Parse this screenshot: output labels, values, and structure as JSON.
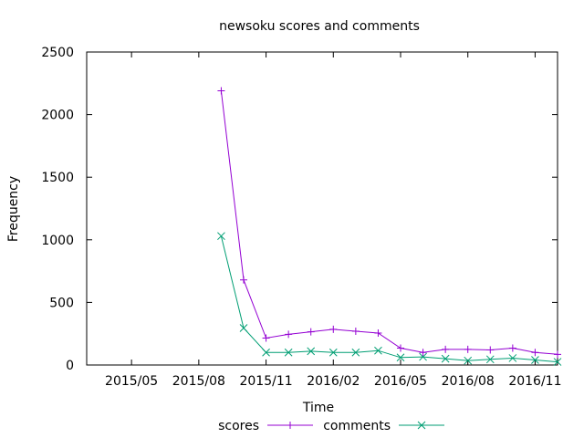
{
  "chart_data": {
    "type": "line",
    "title": "newsoku scores and comments",
    "xlabel": "Time",
    "ylabel": "Frequency",
    "x_tick_labels": [
      "2015/05",
      "2015/08",
      "2015/11",
      "2016/02",
      "2016/05",
      "2016/08",
      "2016/11"
    ],
    "y_ticks": [
      0,
      500,
      1000,
      1500,
      2000,
      2500
    ],
    "ylim": [
      0,
      2500
    ],
    "xlim": [
      "2015-03",
      "2016-12"
    ],
    "grid": false,
    "legend": "bottom-center",
    "x": [
      "2015-09",
      "2015-10",
      "2015-11",
      "2015-12",
      "2016-01",
      "2016-02",
      "2016-03",
      "2016-04",
      "2016-05",
      "2016-06",
      "2016-07",
      "2016-08",
      "2016-09",
      "2016-10",
      "2016-11",
      "2016-12"
    ],
    "series": [
      {
        "name": "scores",
        "color": "#9400d3",
        "marker": "plus",
        "values": [
          2190,
          680,
          215,
          245,
          265,
          285,
          270,
          255,
          135,
          100,
          125,
          125,
          120,
          135,
          100,
          85
        ]
      },
      {
        "name": "comments",
        "color": "#009e73",
        "marker": "cross",
        "values": [
          1030,
          295,
          100,
          100,
          110,
          100,
          100,
          115,
          60,
          65,
          50,
          35,
          45,
          55,
          40,
          25
        ]
      }
    ]
  }
}
